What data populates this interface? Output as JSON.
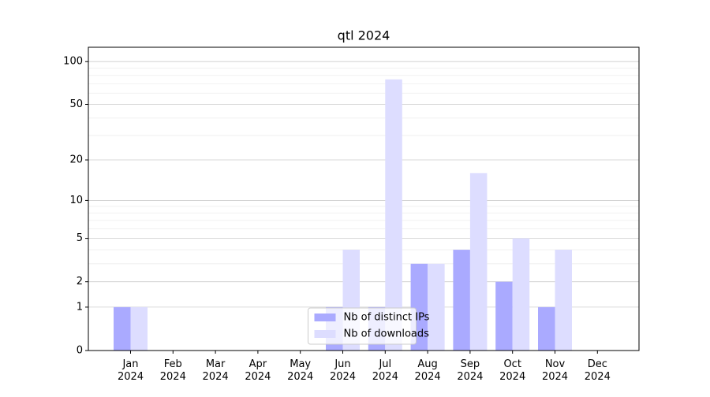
{
  "chart_data": {
    "type": "bar",
    "title": "qtl 2024",
    "categories": [
      "Jan\n2024",
      "Feb\n2024",
      "Mar\n2024",
      "Apr\n2024",
      "May\n2024",
      "Jun\n2024",
      "Jul\n2024",
      "Aug\n2024",
      "Sep\n2024",
      "Oct\n2024",
      "Nov\n2024",
      "Dec\n2024"
    ],
    "series": [
      {
        "name": "Nb of distinct IPs",
        "color": "#aaaaff",
        "values": [
          1,
          0,
          0,
          0,
          0,
          1,
          1,
          3,
          4,
          2,
          1,
          0
        ]
      },
      {
        "name": "Nb of downloads",
        "color": "#ddddff",
        "values": [
          1,
          0,
          0,
          0,
          0,
          4,
          75,
          3,
          16,
          5,
          4,
          0
        ]
      }
    ],
    "yscale": "log1p",
    "ylim": [
      0,
      126
    ],
    "yticks": [
      0,
      1,
      2,
      5,
      10,
      20,
      50,
      100
    ],
    "minor_yticks": [
      3,
      4,
      6,
      7,
      8,
      9,
      30,
      40,
      60,
      70,
      80,
      90
    ],
    "grid": true,
    "legend": "lower center"
  }
}
